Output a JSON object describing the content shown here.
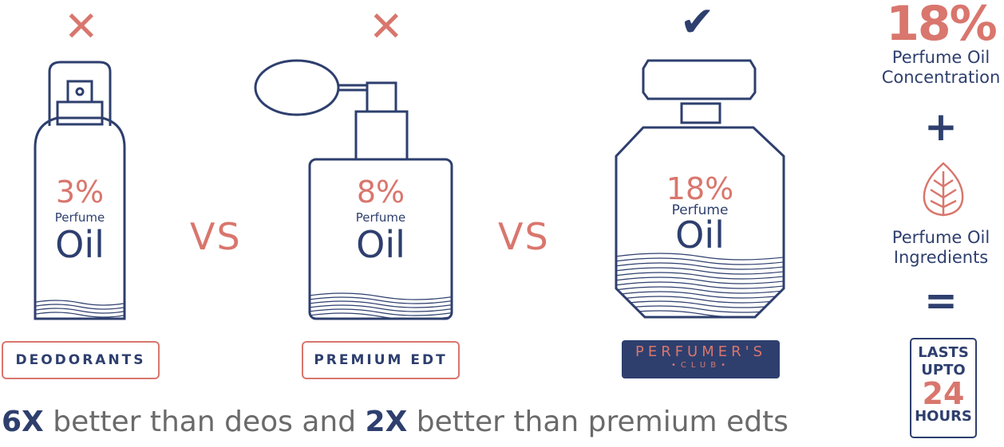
{
  "products": [
    {
      "mark": "✕",
      "percent": "3%",
      "perfume": "Perfume",
      "oil": "Oil",
      "label": "DEODORANTS"
    },
    {
      "mark": "✕",
      "percent": "8%",
      "perfume": "Perfume",
      "oil": "Oil",
      "label": "PREMIUM EDT"
    },
    {
      "mark": "✔",
      "percent": "18%",
      "perfume": "Perfume",
      "oil": "Oil",
      "brand_line1": "PERFUMER'S",
      "brand_line2": "•CLUB•"
    }
  ],
  "vs": [
    "VS",
    "VS"
  ],
  "summary": {
    "concentration_value": "18%",
    "concentration_label_1": "Perfume Oil",
    "concentration_label_2": "Concentration",
    "plus": "+",
    "ingredients_label_1": "Perfume Oil",
    "ingredients_label_2": "Ingredients",
    "equals": "=",
    "lasts_line1": "LASTS",
    "lasts_line2": "UPTO",
    "lasts_value": "24",
    "lasts_line4": "HOURS"
  },
  "tagline": {
    "part1_bold": "6X",
    "part2": " better than deos and ",
    "part3_bold": "2X",
    "part4": " better than premium edts"
  },
  "colors": {
    "navy": "#2e3f6e",
    "coral": "#d9766d",
    "grey": "#6a6a6a"
  }
}
